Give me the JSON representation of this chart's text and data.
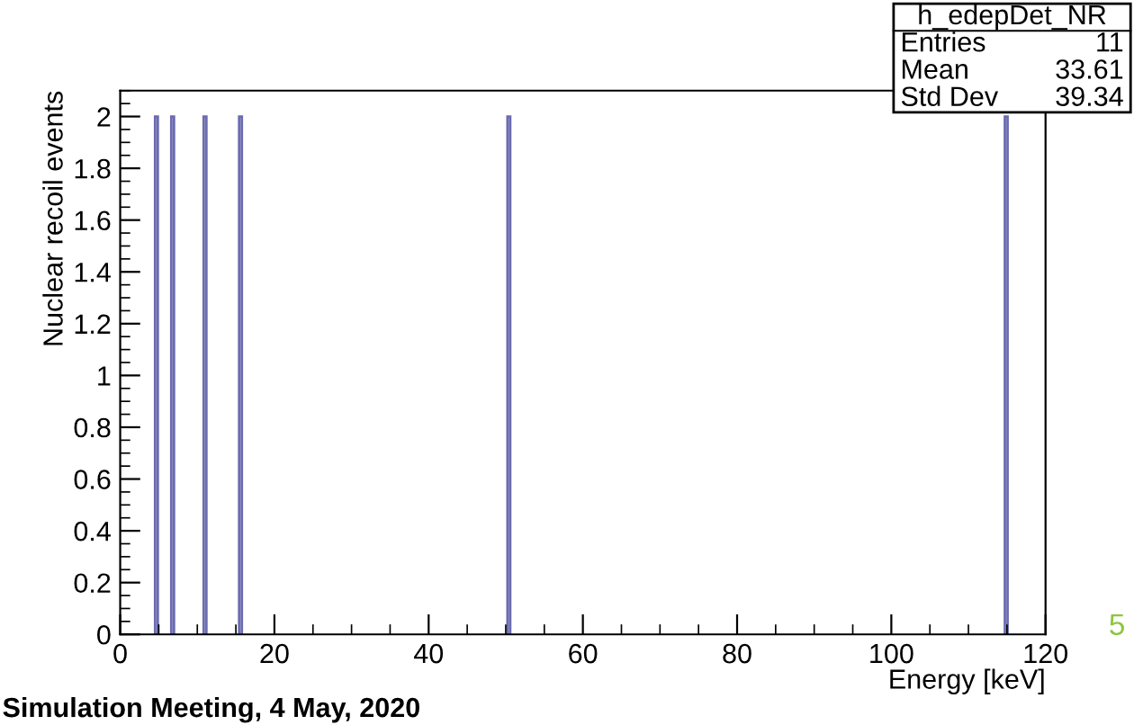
{
  "chart_data": {
    "type": "bar",
    "x": [
      4.7,
      6.8,
      11.0,
      15.6,
      50.4,
      114.9
    ],
    "values": [
      2,
      2,
      2,
      2,
      2,
      2
    ],
    "color": "#6b6bb0",
    "xlabel": "Energy [keV]",
    "ylabel": "Nuclear recoil events",
    "xlim": [
      0,
      120
    ],
    "xticks": [
      0,
      20,
      40,
      60,
      80,
      100,
      120
    ],
    "ylim": [
      0,
      2.1
    ],
    "yticks": [
      0,
      0.2,
      0.4,
      0.6,
      0.8,
      1,
      1.2,
      1.4,
      1.6,
      1.8,
      2
    ],
    "annotations": [
      "h_edepDet_NR",
      "Entries",
      "11",
      "Mean",
      "33.61",
      "Std Dev",
      "39.34",
      "Simulation Meeting, 4 May, 2020",
      "5"
    ]
  }
}
